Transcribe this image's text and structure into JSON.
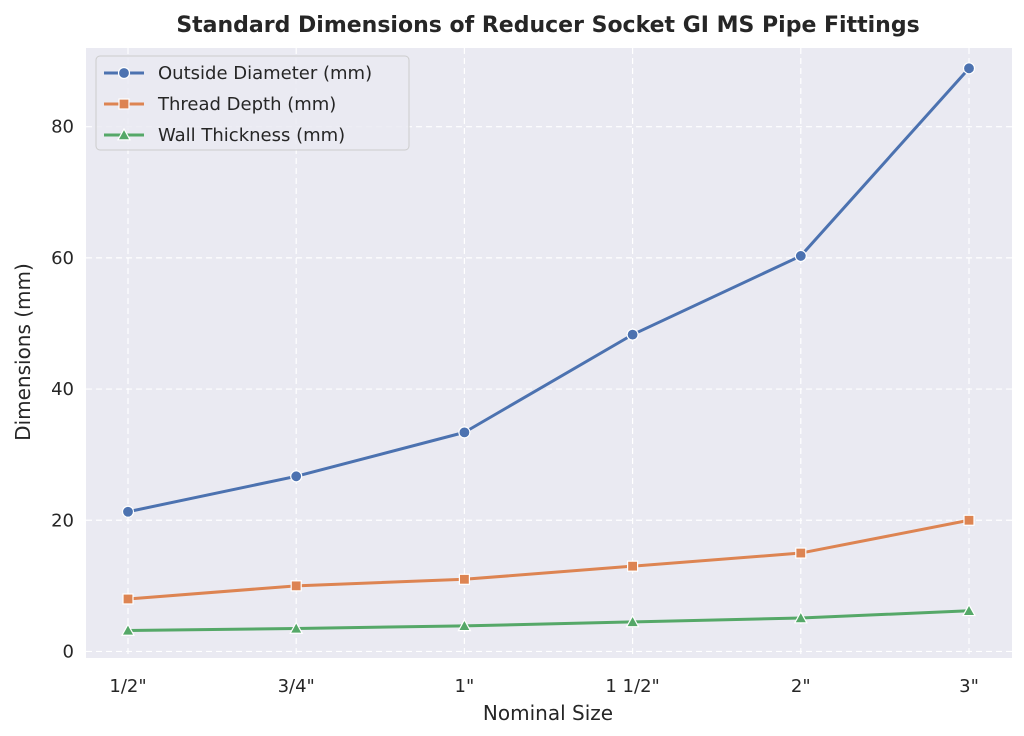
{
  "chart_data": {
    "type": "line",
    "title": "Standard Dimensions of Reducer Socket GI MS Pipe Fittings",
    "xlabel": "Nominal Size",
    "ylabel": "Dimensions (mm)",
    "categories": [
      "1/2\"",
      "3/4\"",
      "1\"",
      "1 1/2\"",
      "2\"",
      "3\""
    ],
    "ylim": [
      -1,
      92
    ],
    "yticks": [
      0,
      20,
      40,
      60,
      80
    ],
    "grid": true,
    "legend_position": "top-left",
    "series": [
      {
        "name": "Outside Diameter (mm)",
        "color": "#4c72b0",
        "marker": "circle",
        "values": [
          21.3,
          26.7,
          33.4,
          48.3,
          60.3,
          88.9
        ]
      },
      {
        "name": "Thread Depth (mm)",
        "color": "#dd8452",
        "marker": "square",
        "values": [
          8,
          10,
          11,
          13,
          15,
          20
        ]
      },
      {
        "name": "Wall Thickness (mm)",
        "color": "#55a868",
        "marker": "triangle",
        "values": [
          3.2,
          3.5,
          3.9,
          4.5,
          5.1,
          6.2
        ]
      }
    ]
  }
}
